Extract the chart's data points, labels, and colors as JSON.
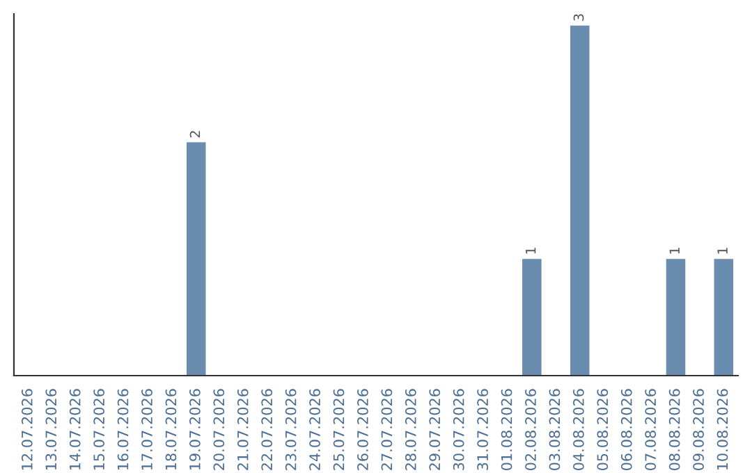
{
  "chart_data": {
    "type": "bar",
    "categories": [
      "12.07.2026",
      "13.07.2026",
      "14.07.2026",
      "15.07.2026",
      "16.07.2026",
      "17.07.2026",
      "18.07.2026",
      "19.07.2026",
      "20.07.2026",
      "21.07.2026",
      "22.07.2026",
      "23.07.2026",
      "24.07.2026",
      "25.07.2026",
      "26.07.2026",
      "27.07.2026",
      "28.07.2026",
      "29.07.2026",
      "30.07.2026",
      "31.07.2026",
      "01.08.2026",
      "02.08.2026",
      "03.08.2026",
      "04.08.2026",
      "05.08.2026",
      "06.08.2026",
      "07.08.2026",
      "08.08.2026",
      "09.08.2026",
      "10.08.2026"
    ],
    "values": [
      0,
      0,
      0,
      0,
      0,
      0,
      0,
      2,
      0,
      0,
      0,
      0,
      0,
      0,
      0,
      0,
      0,
      0,
      0,
      0,
      0,
      1,
      0,
      3,
      0,
      0,
      0,
      1,
      0,
      1
    ],
    "value_labels": [
      null,
      null,
      null,
      null,
      null,
      null,
      null,
      "2",
      null,
      null,
      null,
      null,
      null,
      null,
      null,
      null,
      null,
      null,
      null,
      null,
      null,
      "1",
      null,
      "3",
      null,
      null,
      null,
      "1",
      null,
      "1"
    ],
    "color": "#6a8caf",
    "ylim": [
      0,
      3.1
    ],
    "tick_labels": "x",
    "grid": false,
    "legend": false
  }
}
